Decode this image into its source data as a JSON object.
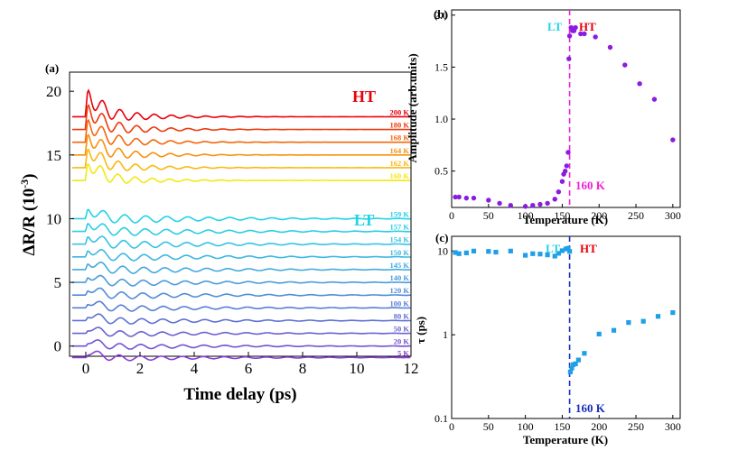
{
  "figure": {
    "panel_a": "(a)",
    "panel_b": "(b)",
    "panel_c": "(c)"
  },
  "chart_data": [
    {
      "id": "a",
      "type": "line",
      "xlabel": "Time delay (ps)",
      "ylabel_main": "ΔR/R (10",
      "ylabel_sup": "-3",
      "ylabel_tail": ")",
      "xlim": [
        -0.6,
        12
      ],
      "ylim": [
        -0.8,
        21.5
      ],
      "xticks": [
        "0",
        "2",
        "4",
        "6",
        "8",
        "10",
        "12"
      ],
      "yticks": [
        "0",
        "5",
        "10",
        "15",
        "20"
      ],
      "phase_labels": {
        "ht": "HT",
        "lt": "LT"
      },
      "colors": {
        "ht_label": "#e8000b",
        "lt_label": "#22d3e6"
      },
      "series": [
        {
          "name": "200 K",
          "offset": 18.0,
          "amp": 2.6,
          "color": "#e8000b"
        },
        {
          "name": "180 K",
          "offset": 17.0,
          "amp": 2.5,
          "color": "#ef3a0c"
        },
        {
          "name": "168 K",
          "offset": 16.0,
          "amp": 2.4,
          "color": "#f4660d"
        },
        {
          "name": "164 K",
          "offset": 15.0,
          "amp": 2.3,
          "color": "#f7910f"
        },
        {
          "name": "162 K",
          "offset": 14.0,
          "amp": 2.2,
          "color": "#fab812"
        },
        {
          "name": "160 K",
          "offset": 13.0,
          "amp": 2.1,
          "color": "#f3e813"
        },
        {
          "name": "159 K",
          "offset": 10.0,
          "amp": 1.4,
          "color": "#22d3e6"
        },
        {
          "name": "157 K",
          "offset": 9.0,
          "amp": 1.3,
          "color": "#2ccce5"
        },
        {
          "name": "154 K",
          "offset": 8.0,
          "amp": 1.3,
          "color": "#35c3e3"
        },
        {
          "name": "150 K",
          "offset": 7.0,
          "amp": 1.2,
          "color": "#3cb8e1"
        },
        {
          "name": "145 K",
          "offset": 6.0,
          "amp": 1.2,
          "color": "#43aadf"
        },
        {
          "name": "140 K",
          "offset": 5.0,
          "amp": 1.1,
          "color": "#4a9cdc"
        },
        {
          "name": "120 K",
          "offset": 4.0,
          "amp": 1.1,
          "color": "#508dd9"
        },
        {
          "name": "100 K",
          "offset": 3.0,
          "amp": 1.0,
          "color": "#577fd6"
        },
        {
          "name": "80 K",
          "offset": 2.0,
          "amp": 1.0,
          "color": "#5f70d4"
        },
        {
          "name": "50 K",
          "offset": 1.0,
          "amp": 0.9,
          "color": "#6a62d2"
        },
        {
          "name": "20 K",
          "offset": 0.0,
          "amp": 0.9,
          "color": "#7452d1"
        },
        {
          "name": "5 K",
          "offset": -0.9,
          "amp": 0.9,
          "color": "#8a3fd6"
        }
      ]
    },
    {
      "id": "b",
      "type": "scatter",
      "xlabel": "Temperature (K)",
      "ylabel": "Amplitude (arb.units)",
      "xlim": [
        0,
        310
      ],
      "ylim": [
        0.15,
        2.05
      ],
      "xticks": [
        "0",
        "50",
        "100",
        "150",
        "200",
        "250",
        "300"
      ],
      "yticks": [
        "0.5",
        "1.0",
        "1.5",
        "2.0"
      ],
      "ytick_values": [
        0.5,
        1.0,
        1.5,
        2.0
      ],
      "color": "#8a1be0",
      "transition_line": {
        "x": 160,
        "color": "#ee22d8",
        "label": "160 K"
      },
      "phase_labels": {
        "lt": "LT",
        "ht": "HT"
      },
      "phase_colors": {
        "lt": "#22d3e6",
        "ht": "#e8000b"
      },
      "points": [
        [
          5,
          0.25
        ],
        [
          10,
          0.25
        ],
        [
          20,
          0.24
        ],
        [
          30,
          0.24
        ],
        [
          50,
          0.22
        ],
        [
          65,
          0.19
        ],
        [
          80,
          0.17
        ],
        [
          100,
          0.16
        ],
        [
          110,
          0.17
        ],
        [
          120,
          0.18
        ],
        [
          130,
          0.19
        ],
        [
          140,
          0.23
        ],
        [
          145,
          0.3
        ],
        [
          150,
          0.4
        ],
        [
          152,
          0.47
        ],
        [
          154,
          0.5
        ],
        [
          156,
          0.55
        ],
        [
          158,
          0.68
        ],
        [
          159,
          1.58
        ],
        [
          160,
          1.8
        ],
        [
          162,
          1.88
        ],
        [
          164,
          1.85
        ],
        [
          166,
          1.85
        ],
        [
          168,
          1.88
        ],
        [
          175,
          1.82
        ],
        [
          180,
          1.82
        ],
        [
          195,
          1.79
        ],
        [
          215,
          1.69
        ],
        [
          235,
          1.52
        ],
        [
          255,
          1.34
        ],
        [
          275,
          1.19
        ],
        [
          300,
          0.8
        ]
      ]
    },
    {
      "id": "c",
      "type": "scatter",
      "xlabel": "Temperature (K)",
      "ylabel": "τ (ps)",
      "xlim": [
        0,
        310
      ],
      "ylim": [
        0.1,
        15
      ],
      "yscale": "log",
      "xticks": [
        "0",
        "50",
        "100",
        "150",
        "200",
        "250",
        "300"
      ],
      "yticks": [
        "0.1",
        "1",
        "10"
      ],
      "ytick_values": [
        0.1,
        1,
        10
      ],
      "color": "#1e9fe8",
      "transition_line": {
        "x": 160,
        "color": "#1a2fb8",
        "label": "160 K"
      },
      "phase_labels": {
        "lt": "LT",
        "ht": "HT"
      },
      "phase_colors": {
        "lt": "#22d3e6",
        "ht": "#e8000b"
      },
      "points": [
        [
          5,
          9.6
        ],
        [
          10,
          9.3
        ],
        [
          20,
          9.5
        ],
        [
          30,
          10
        ],
        [
          50,
          9.9
        ],
        [
          60,
          9.7
        ],
        [
          80,
          10
        ],
        [
          100,
          8.9
        ],
        [
          110,
          9.3
        ],
        [
          120,
          9.2
        ],
        [
          130,
          9
        ],
        [
          140,
          8.7
        ],
        [
          145,
          9.4
        ],
        [
          150,
          10.1
        ],
        [
          155,
          10.6
        ],
        [
          158,
          10.8
        ],
        [
          160,
          9.9
        ],
        [
          161,
          0.36
        ],
        [
          163,
          0.4
        ],
        [
          165,
          0.44
        ],
        [
          168,
          0.45
        ],
        [
          172,
          0.5
        ],
        [
          180,
          0.6
        ],
        [
          200,
          1.02
        ],
        [
          220,
          1.13
        ],
        [
          240,
          1.4
        ],
        [
          260,
          1.45
        ],
        [
          280,
          1.66
        ],
        [
          300,
          1.84
        ]
      ]
    }
  ]
}
